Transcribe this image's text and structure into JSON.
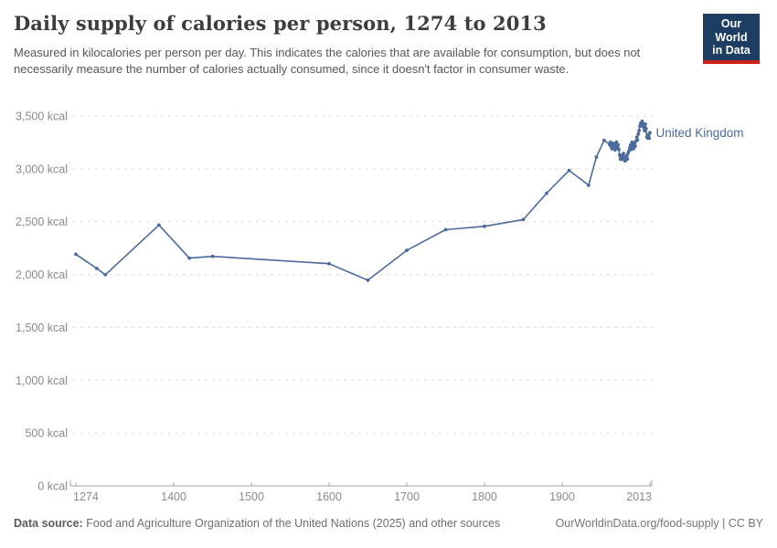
{
  "header": {
    "title": "Daily supply of calories per person, 1274 to 2013",
    "subtitle": "Measured in kilocalories per person per day. This indicates the calories that are available for consumption, but does not necessarily measure the number of calories actually consumed, since it doesn't factor in consumer waste.",
    "logo": {
      "line1": "Our World",
      "line2": "in Data"
    }
  },
  "colors": {
    "line": "#4C6A9C",
    "entity_label": "#4C6A9C",
    "gridline": "#dcdcdc",
    "axis": "#a5a5a5",
    "tick_label": "#8b8b8b",
    "logo_navy": "#1d3d63",
    "logo_red": "#cf2017"
  },
  "chart_data": {
    "type": "line",
    "title": "Daily supply of calories per person, 1274 to 2013",
    "unit": "kcal",
    "grid": "horizontal-dashed",
    "legend_position": "end-of-line-label",
    "xlim": [
      1274,
      2013
    ],
    "ylim": [
      0,
      3500
    ],
    "x_ticks": [
      1274,
      1400,
      1500,
      1600,
      1700,
      1800,
      1900,
      2013
    ],
    "x_tick_labels": [
      "1274",
      "1400",
      "1500",
      "1600",
      "1700",
      "1800",
      "1900",
      "2013"
    ],
    "y_ticks": [
      0,
      500,
      1000,
      1500,
      2000,
      2500,
      3000,
      3500
    ],
    "y_tick_labels": [
      "0 kcal",
      "500 kcal",
      "1,000 kcal",
      "1,500 kcal",
      "2,000 kcal",
      "2,500 kcal",
      "3,000 kcal",
      "3,500 kcal"
    ],
    "series": [
      {
        "name": "United Kingdom",
        "points": [
          [
            1274,
            2192
          ],
          [
            1301,
            2058
          ],
          [
            1312,
            1998
          ],
          [
            1381,
            2468
          ],
          [
            1420,
            2155
          ],
          [
            1450,
            2172
          ],
          [
            1600,
            2103
          ],
          [
            1650,
            1946
          ],
          [
            1700,
            2229
          ],
          [
            1750,
            2424
          ],
          [
            1800,
            2456
          ],
          [
            1850,
            2520
          ],
          [
            1880,
            2770
          ],
          [
            1909,
            2985
          ],
          [
            1934,
            2845
          ],
          [
            1944,
            3112
          ],
          [
            1954,
            3270
          ],
          [
            1961,
            3231
          ],
          [
            1962,
            3253
          ],
          [
            1963,
            3211
          ],
          [
            1964,
            3190
          ],
          [
            1965,
            3241
          ],
          [
            1966,
            3210
          ],
          [
            1967,
            3238
          ],
          [
            1968,
            3179
          ],
          [
            1969,
            3216
          ],
          [
            1970,
            3253
          ],
          [
            1971,
            3195
          ],
          [
            1972,
            3226
          ],
          [
            1973,
            3184
          ],
          [
            1974,
            3131
          ],
          [
            1975,
            3093
          ],
          [
            1976,
            3126
          ],
          [
            1977,
            3089
          ],
          [
            1978,
            3120
          ],
          [
            1979,
            3146
          ],
          [
            1980,
            3107
          ],
          [
            1981,
            3074
          ],
          [
            1982,
            3096
          ],
          [
            1983,
            3125
          ],
          [
            1984,
            3093
          ],
          [
            1985,
            3150
          ],
          [
            1986,
            3172
          ],
          [
            1987,
            3198
          ],
          [
            1988,
            3226
          ],
          [
            1989,
            3184
          ],
          [
            1990,
            3253
          ],
          [
            1991,
            3221
          ],
          [
            1992,
            3192
          ],
          [
            1993,
            3244
          ],
          [
            1994,
            3215
          ],
          [
            1995,
            3262
          ],
          [
            1996,
            3300
          ],
          [
            1997,
            3273
          ],
          [
            1998,
            3331
          ],
          [
            1999,
            3362
          ],
          [
            2000,
            3402
          ],
          [
            2001,
            3431
          ],
          [
            2002,
            3412
          ],
          [
            2003,
            3450
          ],
          [
            2004,
            3429
          ],
          [
            2005,
            3391
          ],
          [
            2006,
            3361
          ],
          [
            2007,
            3423
          ],
          [
            2008,
            3380
          ],
          [
            2009,
            3302
          ],
          [
            2010,
            3291
          ],
          [
            2011,
            3322
          ],
          [
            2012,
            3289
          ],
          [
            2013,
            3342
          ]
        ]
      }
    ]
  },
  "footer": {
    "source_label": "Data source:",
    "source_text": " Food and Agriculture Organization of the United Nations (2025) and other sources",
    "license": "OurWorldinData.org/food-supply | CC BY"
  }
}
